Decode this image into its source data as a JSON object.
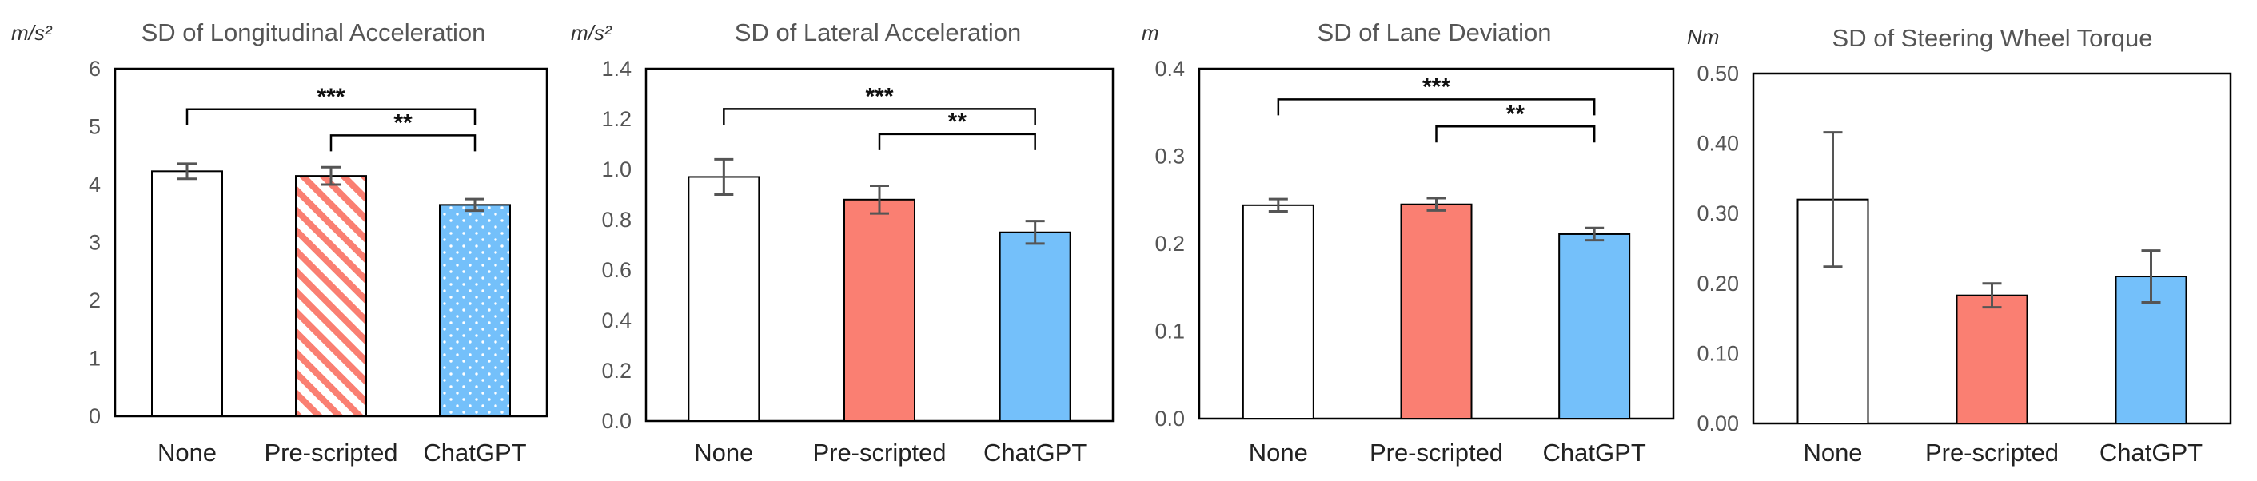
{
  "chart_data": [
    {
      "type": "bar",
      "title": "SD of Longitudinal Acceleration",
      "unit": "m/s²",
      "categories": [
        "None",
        "Pre-scripted",
        "ChatGPT"
      ],
      "values": [
        4.23,
        4.15,
        3.65
      ],
      "errors": [
        0.13,
        0.15,
        0.1
      ],
      "ylim": [
        0,
        6
      ],
      "yticks": [
        0,
        1,
        2,
        3,
        4,
        5,
        6
      ],
      "tick_labels": [
        "0",
        "1",
        "2",
        "3",
        "4",
        "5",
        "6"
      ],
      "fills": [
        "plain",
        "hatched",
        "dotted"
      ],
      "significance": [
        {
          "from": 0,
          "to": 2,
          "label": "***",
          "y": 5.3
        },
        {
          "from": 1,
          "to": 2,
          "label": "**",
          "y": 4.85
        }
      ]
    },
    {
      "type": "bar",
      "title": "SD of Lateral Acceleration",
      "unit": "m/s²",
      "categories": [
        "None",
        "Pre-scripted",
        "ChatGPT"
      ],
      "values": [
        0.97,
        0.88,
        0.75
      ],
      "errors": [
        0.07,
        0.055,
        0.045
      ],
      "ylim": [
        0,
        1.4
      ],
      "yticks": [
        0,
        0.2,
        0.4,
        0.6,
        0.8,
        1.0,
        1.2,
        1.4
      ],
      "tick_labels": [
        "0.0",
        "0.2",
        "0.4",
        "0.6",
        "0.8",
        "1.0",
        "1.2",
        "1.4"
      ],
      "fills": [
        "plain",
        "solid",
        "solid"
      ],
      "significance": [
        {
          "from": 0,
          "to": 2,
          "label": "***",
          "y": 1.24
        },
        {
          "from": 1,
          "to": 2,
          "label": "**",
          "y": 1.14
        }
      ]
    },
    {
      "type": "bar",
      "title": "SD of Lane Deviation",
      "unit": "m",
      "categories": [
        "None",
        "Pre-scripted",
        "ChatGPT"
      ],
      "values": [
        0.244,
        0.245,
        0.211
      ],
      "errors": [
        0.007,
        0.007,
        0.007
      ],
      "ylim": [
        0,
        0.4
      ],
      "yticks": [
        0,
        0.1,
        0.2,
        0.3,
        0.4
      ],
      "tick_labels": [
        "0.0",
        "0.1",
        "0.2",
        "0.3",
        "0.4"
      ],
      "fills": [
        "plain",
        "solid",
        "solid"
      ],
      "significance": [
        {
          "from": 0,
          "to": 2,
          "label": "***",
          "y": 0.365
        },
        {
          "from": 1,
          "to": 2,
          "label": "**",
          "y": 0.334
        }
      ]
    },
    {
      "type": "bar",
      "title": "SD of Steering Wheel Torque",
      "unit": "Nm",
      "categories": [
        "None",
        "Pre-scripted",
        "ChatGPT"
      ],
      "values": [
        0.32,
        0.183,
        0.21
      ],
      "errors": [
        0.096,
        0.017,
        0.037
      ],
      "ylim": [
        0,
        0.5
      ],
      "yticks": [
        0,
        0.1,
        0.2,
        0.3,
        0.4,
        0.5
      ],
      "tick_labels": [
        "0.00",
        "0.10",
        "0.20",
        "0.30",
        "0.40",
        "0.50"
      ],
      "fills": [
        "plain",
        "solid",
        "solid"
      ],
      "significance": []
    }
  ],
  "colors": {
    "plain": "#ffffff",
    "red": "#fa7f72",
    "blue": "#74c0fa",
    "axis": "#000000",
    "error_bar": "#555555"
  }
}
